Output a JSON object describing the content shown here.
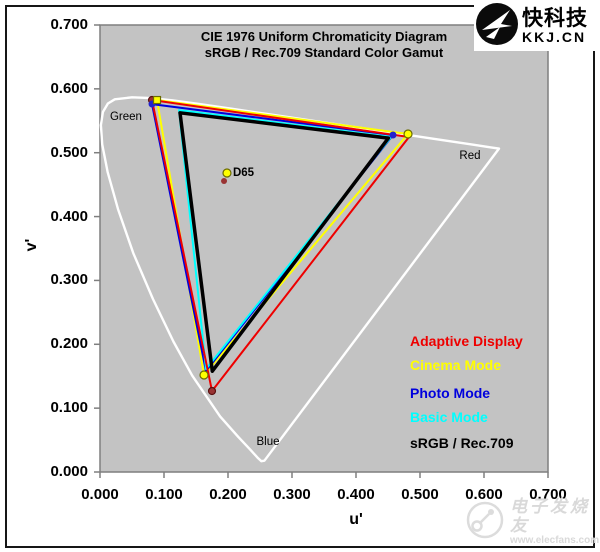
{
  "brand": {
    "name": "快科技",
    "domain": "KKJ.CN"
  },
  "watermark": {
    "name": "电子发烧友",
    "url": "www.elecfans.com"
  },
  "legend": {
    "items": [
      {
        "label": "Adaptive Display",
        "color": "#ee0000"
      },
      {
        "label": "Cinema Mode",
        "color": "#ffff00"
      },
      {
        "label": "Photo Mode",
        "color": "#0000dd"
      },
      {
        "label": "Basic Mode",
        "color": "#00ffff"
      },
      {
        "label": "sRGB / Rec.709",
        "color": "#000000"
      }
    ]
  },
  "chart_data": {
    "type": "line",
    "title": "CIE 1976 Uniform Chromaticity Diagram",
    "subtitle": "sRGB / Rec.709 Standard Color Gamut",
    "xlabel": "u'",
    "ylabel": "v'",
    "xlim": [
      0.0,
      0.7
    ],
    "ylim": [
      0.0,
      0.7
    ],
    "grid": false,
    "plot_bg": "#c3c3c3",
    "axis_color": "#7f7f7f",
    "xtick_labels": [
      "0.000",
      "0.100",
      "0.200",
      "0.300",
      "0.400",
      "0.500",
      "0.600",
      "0.700"
    ],
    "ytick_labels": [
      "0.700",
      "0.600",
      "0.500",
      "0.400",
      "0.300",
      "0.200",
      "0.100",
      "0.000"
    ],
    "series": [
      {
        "name": "CIE spectral locus",
        "color": "#ffffff",
        "width": 2.4,
        "closed": true,
        "points": [
          [
            0.2568,
            0.0177
          ],
          [
            0.2522,
            0.0169
          ],
          [
            0.2461,
            0.0226
          ],
          [
            0.2347,
            0.035
          ],
          [
            0.2161,
            0.0549
          ],
          [
            0.1877,
            0.0871
          ],
          [
            0.1441,
            0.151
          ],
          [
            0.1147,
            0.2044
          ],
          [
            0.0828,
            0.2708
          ],
          [
            0.0521,
            0.3427
          ],
          [
            0.0282,
            0.4117
          ],
          [
            0.0119,
            0.4699
          ],
          [
            0.0035,
            0.5131
          ],
          [
            0.0014,
            0.5432
          ],
          [
            0.0046,
            0.5638
          ],
          [
            0.0123,
            0.577
          ],
          [
            0.0231,
            0.5837
          ],
          [
            0.0501,
            0.5868
          ],
          [
            0.0792,
            0.5856
          ],
          [
            0.1127,
            0.5821
          ],
          [
            0.1531,
            0.5766
          ],
          [
            0.2026,
            0.5694
          ],
          [
            0.2623,
            0.5604
          ],
          [
            0.3315,
            0.5501
          ],
          [
            0.4035,
            0.5393
          ],
          [
            0.4692,
            0.5296
          ],
          [
            0.5202,
            0.5219
          ],
          [
            0.5831,
            0.5125
          ],
          [
            0.6109,
            0.5084
          ],
          [
            0.6234,
            0.5065
          ]
        ]
      },
      {
        "name": "Cinema Mode",
        "color": "#ffff00",
        "width": 2,
        "closed": true,
        "points": [
          [
            0.0891,
            0.5825
          ],
          [
            0.4813,
            0.5293
          ],
          [
            0.1625,
            0.1519
          ]
        ]
      },
      {
        "name": "Photo Mode",
        "color": "#0000dd",
        "width": 2,
        "closed": true,
        "points": [
          [
            0.0813,
            0.5762
          ],
          [
            0.4578,
            0.5277
          ],
          [
            0.1656,
            0.1582
          ]
        ]
      },
      {
        "name": "Basic Mode",
        "color": "#00ffff",
        "width": 2,
        "closed": true,
        "points": [
          [
            0.1234,
            0.5668
          ],
          [
            0.4547,
            0.5246
          ],
          [
            0.1656,
            0.1613
          ]
        ]
      },
      {
        "name": "sRGB / Rec.709",
        "color": "#000000",
        "width": 3.5,
        "closed": true,
        "points": [
          [
            0.125,
            0.5625
          ],
          [
            0.4507,
            0.5229
          ],
          [
            0.1754,
            0.1579
          ]
        ]
      },
      {
        "name": "Adaptive Display",
        "color": "#ee0000",
        "width": 2,
        "closed": true,
        "points": [
          [
            0.0813,
            0.5825
          ],
          [
            0.4828,
            0.5246
          ],
          [
            0.175,
            0.1268
          ]
        ]
      }
    ],
    "markers": [
      {
        "shape": "circle",
        "fill": "#ffff00",
        "stroke": "#6b6b00",
        "r": 4,
        "u": 0.1984,
        "v": 0.4682
      },
      {
        "shape": "circle",
        "fill": "#993333",
        "stroke": "none",
        "r": 3,
        "u": 0.1938,
        "v": 0.4557
      },
      {
        "shape": "circle",
        "fill": "#993333",
        "stroke": "#5a1010",
        "r": 3.5,
        "u": 0.0813,
        "v": 0.5825
      },
      {
        "shape": "circle",
        "fill": "#993333",
        "stroke": "#5a1010",
        "r": 3.5,
        "u": 0.175,
        "v": 0.1268
      },
      {
        "shape": "circle",
        "fill": "#2222cc",
        "stroke": "none",
        "r": 3.5,
        "u": 0.0813,
        "v": 0.5762
      },
      {
        "shape": "circle",
        "fill": "#2222cc",
        "stroke": "none",
        "r": 3.5,
        "u": 0.4578,
        "v": 0.5277
      },
      {
        "shape": "rect",
        "fill": "#ffff00",
        "stroke": "#6b6b00",
        "r": 3.5,
        "u": 0.0891,
        "v": 0.5825
      },
      {
        "shape": "circle",
        "fill": "#ffff00",
        "stroke": "#6b6b00",
        "r": 4,
        "u": 0.4813,
        "v": 0.5293
      },
      {
        "shape": "circle",
        "fill": "#ffff00",
        "stroke": "#6b6b00",
        "r": 4,
        "u": 0.1625,
        "v": 0.1519
      }
    ],
    "annotations": [
      {
        "id": "green-label",
        "text": "Green",
        "u": 0.0406,
        "v": 0.5574,
        "bold": false,
        "align": "middle"
      },
      {
        "id": "red-label",
        "text": "Red",
        "u": 0.5781,
        "v": 0.4964,
        "bold": false,
        "align": "middle"
      },
      {
        "id": "blue-label",
        "text": "Blue",
        "u": 0.2625,
        "v": 0.0485,
        "bold": false,
        "align": "middle"
      },
      {
        "id": "d65-label",
        "text": "D65",
        "u": 0.2078,
        "v": 0.4698,
        "bold": true,
        "align": "start"
      }
    ]
  }
}
